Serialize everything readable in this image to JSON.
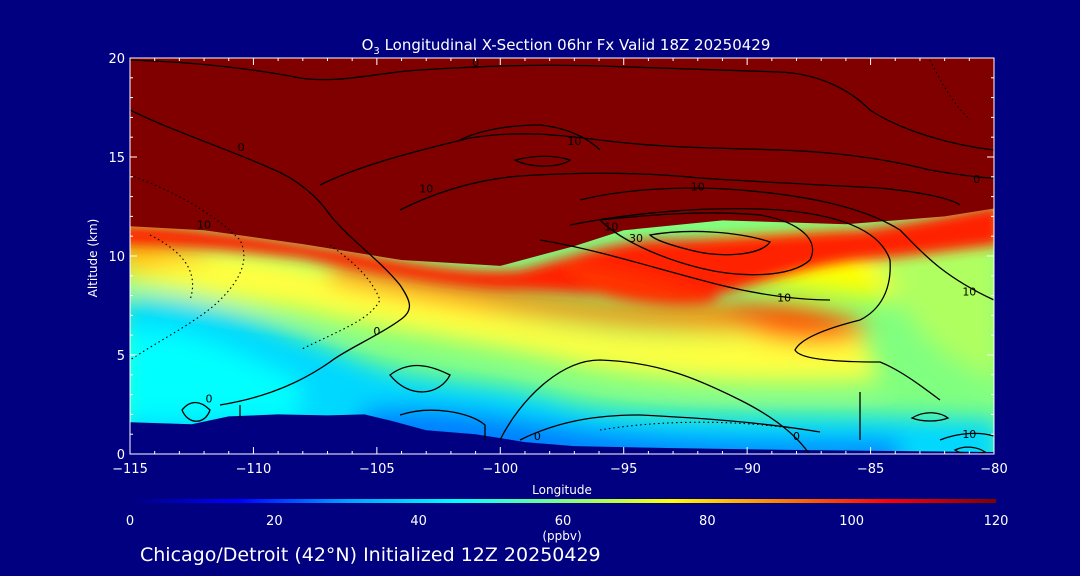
{
  "chart_data": {
    "type": "heatmap",
    "title_main": "O",
    "title_subscript": "3",
    "title_rest": " Longitudinal X-Section 06hr  Fx Valid 18Z 20250429",
    "xlabel": "Longitude",
    "ylabel": "Altitude (km)",
    "xlim": [
      -115,
      -80
    ],
    "ylim": [
      0,
      20
    ],
    "x_ticks": [
      -115,
      -110,
      -105,
      -100,
      -95,
      -90,
      -85,
      -80
    ],
    "x_tick_labels": [
      "−115",
      "−110",
      "−105",
      "−100",
      "−95",
      "−90",
      "−85",
      "−80"
    ],
    "y_ticks": [
      0,
      5,
      10,
      15,
      20
    ],
    "y_tick_labels": [
      "0",
      "5",
      "10",
      "15",
      "20"
    ],
    "grid": false,
    "colorbar": {
      "min": 0,
      "max": 120,
      "ticks": [
        0,
        20,
        40,
        60,
        80,
        100,
        120
      ],
      "tick_labels": [
        "0",
        "20",
        "40",
        "60",
        "80",
        "100",
        "120"
      ],
      "unit_label": "(ppbv)",
      "colors": [
        "#000080",
        "#0000ff",
        "#00a0ff",
        "#00ffff",
        "#80ff80",
        "#ffff00",
        "#ff8000",
        "#ff0000",
        "#800000"
      ]
    },
    "terrain_km": [
      {
        "lon": -115,
        "alt": 1.6
      },
      {
        "lon": -112.5,
        "alt": 1.5
      },
      {
        "lon": -111,
        "alt": 1.9
      },
      {
        "lon": -109,
        "alt": 2.0
      },
      {
        "lon": -107,
        "alt": 1.95
      },
      {
        "lon": -105.5,
        "alt": 2.0
      },
      {
        "lon": -104.5,
        "alt": 1.7
      },
      {
        "lon": -103,
        "alt": 1.2
      },
      {
        "lon": -101,
        "alt": 1.0
      },
      {
        "lon": -99,
        "alt": 0.6
      },
      {
        "lon": -97,
        "alt": 0.4
      },
      {
        "lon": -93,
        "alt": 0.3
      },
      {
        "lon": -88,
        "alt": 0.2
      },
      {
        "lon": -84,
        "alt": 0.15
      },
      {
        "lon": -80,
        "alt": 0.1
      }
    ],
    "tropopause_high_ozone_boundary_km": [
      {
        "lon": -115,
        "alt": 11.5
      },
      {
        "lon": -112,
        "alt": 11.3
      },
      {
        "lon": -108,
        "alt": 10.6
      },
      {
        "lon": -104,
        "alt": 9.8
      },
      {
        "lon": -100,
        "alt": 9.5
      },
      {
        "lon": -97,
        "alt": 10.5
      },
      {
        "lon": -95,
        "alt": 11.3
      },
      {
        "lon": -91,
        "alt": 11.8
      },
      {
        "lon": -86,
        "alt": 11.6
      },
      {
        "lon": -82,
        "alt": 12.0
      },
      {
        "lon": -80,
        "alt": 12.4
      }
    ],
    "contour_labels": [
      {
        "text": "0",
        "lon": -101,
        "alt": 19.8
      },
      {
        "text": "0",
        "lon": -110.5,
        "alt": 15.5
      },
      {
        "text": "10",
        "lon": -97,
        "alt": 15.8
      },
      {
        "text": "10",
        "lon": -103,
        "alt": 13.4
      },
      {
        "text": "10",
        "lon": -92,
        "alt": 13.5
      },
      {
        "text": "10",
        "lon": -95.5,
        "alt": 11.5
      },
      {
        "text": "30",
        "lon": -94.5,
        "alt": 10.9
      },
      {
        "text": "10",
        "lon": -112,
        "alt": 11.6
      },
      {
        "text": "10",
        "lon": -88.5,
        "alt": 7.9
      },
      {
        "text": "10",
        "lon": -81,
        "alt": 8.2
      },
      {
        "text": "0",
        "lon": -105,
        "alt": 6.2
      },
      {
        "text": "0",
        "lon": -111.8,
        "alt": 2.8
      },
      {
        "text": "0",
        "lon": -98.5,
        "alt": 0.9
      },
      {
        "text": "0",
        "lon": -88,
        "alt": 0.9
      },
      {
        "text": "0",
        "lon": -80.7,
        "alt": 13.9
      },
      {
        "text": "10",
        "lon": -81,
        "alt": 1.0
      }
    ]
  },
  "footer": "Chicago/Detroit (42°N) Initialized 12Z 20250429"
}
